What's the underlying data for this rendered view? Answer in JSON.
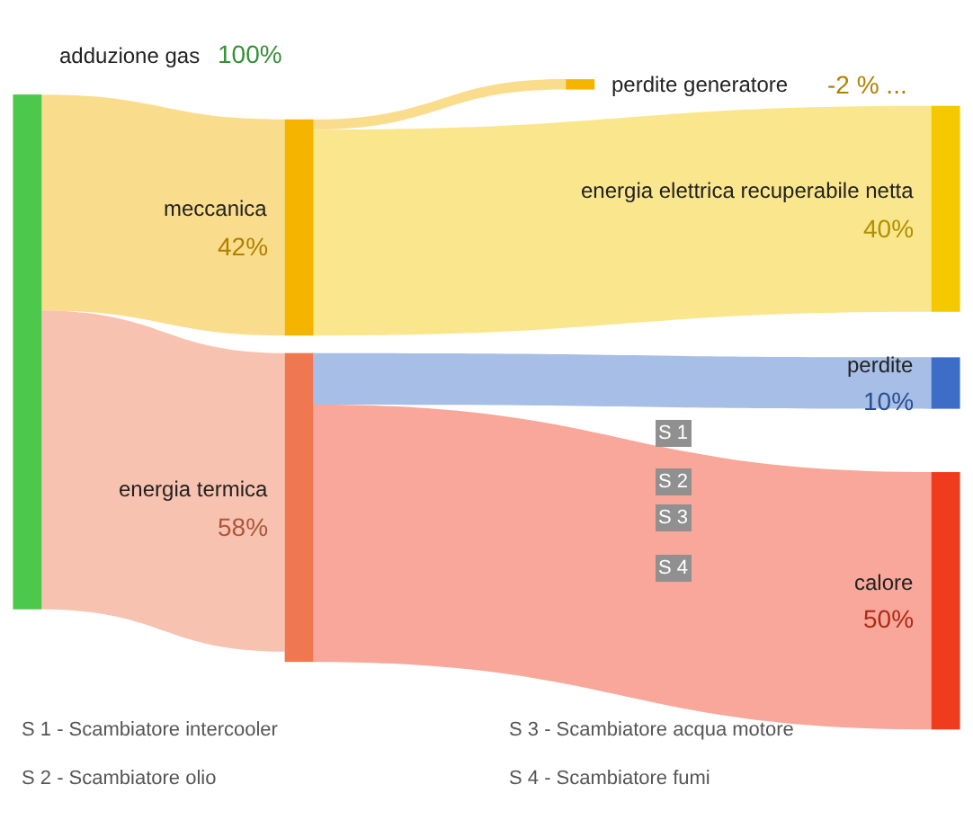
{
  "chart_data": {
    "type": "other",
    "categories": [
      "adduzione gas",
      "meccanica",
      "energia termica",
      "perdite generatore",
      "energia elettrica recuperabile netta",
      "perdite",
      "calore"
    ],
    "values": [
      100,
      42,
      58,
      -2,
      40,
      10,
      50
    ],
    "value_labels": [
      "100%",
      "42%",
      "58%",
      "-2 % ...",
      "40%",
      "10%",
      "50%"
    ],
    "colors": [
      "#4cc84c",
      "#f5b400",
      "#f07850",
      "#f5b400",
      "#f5c800",
      "#3c6ec8",
      "#f03c1e"
    ],
    "annotations": [
      "S 1",
      "S 2",
      "S 3",
      "S 4",
      "S 1 - Scambiatore intercooler",
      "S 2 - Scambiatore olio",
      "S 3 - Scambiatore acqua motore",
      "S 4 - Scambiatore fumi"
    ]
  }
}
